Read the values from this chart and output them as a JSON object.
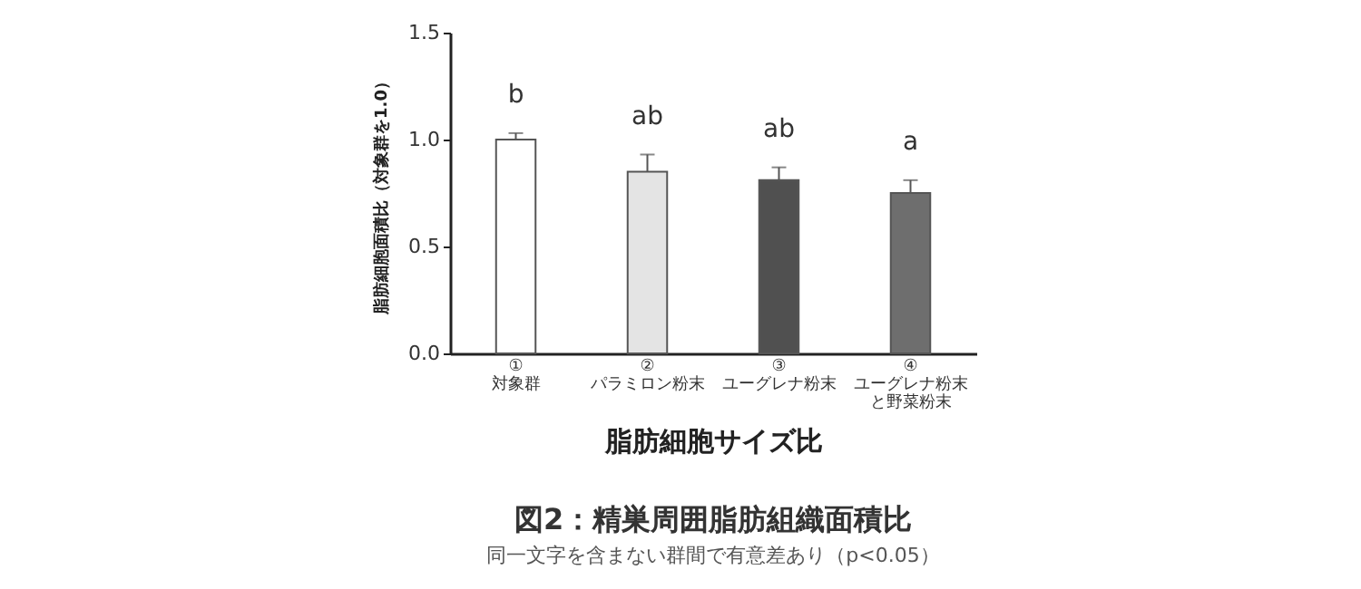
{
  "chart_data": {
    "type": "bar",
    "title": "図2：精巣周囲脂肪組織面積比",
    "subtitle": "同一文字を含まない群間で有意差あり（p<0.05）",
    "xlabel": "脂肪細胞サイズ比",
    "ylabel": "脂肪細胞面積比（対象群を1.0）",
    "categories": [
      "①\n対象群",
      "②\nパラミロン粉末",
      "③\nユーグレナ粉末",
      "④\nユーグレナ粉末と野菜粉末"
    ],
    "values": [
      1.0,
      0.85,
      0.81,
      0.75
    ],
    "errors": [
      [
        1.0,
        1.03
      ],
      [
        0.85,
        0.93
      ],
      [
        0.81,
        0.87
      ],
      [
        0.75,
        0.81
      ]
    ],
    "colors": [
      "#ffffff",
      "#e4e4e4",
      "#505050",
      "#6e6e6e"
    ],
    "ylim": [
      0,
      1.5
    ],
    "yticks": [
      {
        "value": 0,
        "label": "0.0"
      },
      {
        "value": 0.5,
        "label": "0.5"
      },
      {
        "value": 1,
        "label": "1.0"
      },
      {
        "value": 1.5,
        "label": "1.5"
      }
    ],
    "grid": false,
    "annotations": [
      {
        "text": "b",
        "x": "①\n対象群",
        "y": 1.03
      },
      {
        "text": "ab",
        "x": "②\nパラミロン粉末",
        "y": 0.93
      },
      {
        "text": "ab",
        "x": "③\nユーグレナ粉末",
        "y": 0.87
      },
      {
        "text": "a",
        "x": "④\nユーグレナ粉末と野菜粉末",
        "y": 0.81
      }
    ]
  }
}
